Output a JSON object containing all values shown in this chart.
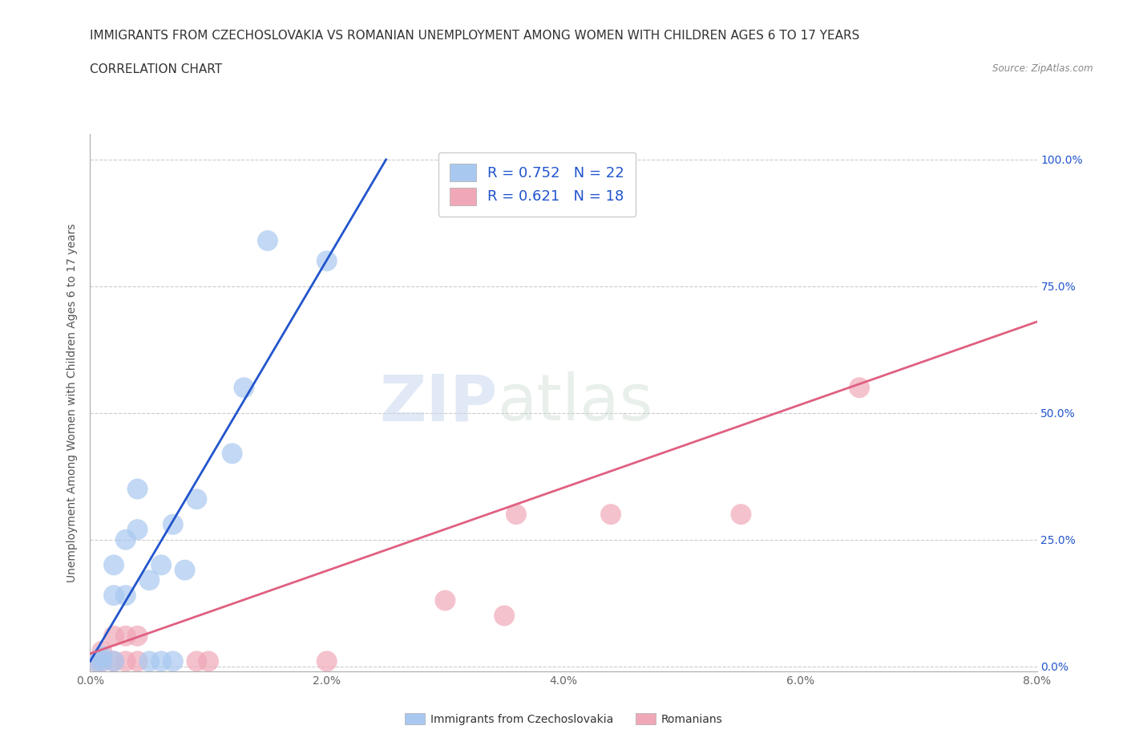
{
  "title_line1": "IMMIGRANTS FROM CZECHOSLOVAKIA VS ROMANIAN UNEMPLOYMENT AMONG WOMEN WITH CHILDREN AGES 6 TO 17 YEARS",
  "title_line2": "CORRELATION CHART",
  "source_text": "Source: ZipAtlas.com",
  "ylabel": "Unemployment Among Women with Children Ages 6 to 17 years",
  "xlim": [
    0.0,
    0.08
  ],
  "ylim": [
    -0.01,
    1.05
  ],
  "xticks": [
    0.0,
    0.02,
    0.04,
    0.06,
    0.08
  ],
  "xticklabels": [
    "0.0%",
    "2.0%",
    "4.0%",
    "6.0%",
    "8.0%"
  ],
  "yticks": [
    0.0,
    0.25,
    0.5,
    0.75,
    1.0
  ],
  "yticklabels": [
    "0.0%",
    "25.0%",
    "50.0%",
    "75.0%",
    "100.0%"
  ],
  "blue_color": "#a8c8f0",
  "pink_color": "#f0a8b8",
  "blue_line_color": "#2255cc",
  "pink_line_color": "#e06080",
  "watermark_zip": "ZIP",
  "watermark_atlas": "atlas",
  "R_blue": 0.752,
  "N_blue": 22,
  "R_pink": 0.621,
  "N_pink": 18,
  "blue_scatter_x": [
    0.0005,
    0.001,
    0.001,
    0.002,
    0.002,
    0.002,
    0.003,
    0.003,
    0.004,
    0.004,
    0.005,
    0.005,
    0.006,
    0.006,
    0.007,
    0.007,
    0.008,
    0.009,
    0.012,
    0.013,
    0.015,
    0.02
  ],
  "blue_scatter_y": [
    0.01,
    0.01,
    0.02,
    0.01,
    0.14,
    0.2,
    0.14,
    0.25,
    0.27,
    0.35,
    0.01,
    0.17,
    0.01,
    0.2,
    0.01,
    0.28,
    0.19,
    0.33,
    0.42,
    0.55,
    0.84,
    0.8
  ],
  "pink_scatter_x": [
    0.0005,
    0.001,
    0.001,
    0.002,
    0.002,
    0.003,
    0.003,
    0.004,
    0.004,
    0.009,
    0.01,
    0.02,
    0.03,
    0.035,
    0.036,
    0.044,
    0.055,
    0.065
  ],
  "pink_scatter_y": [
    0.01,
    0.01,
    0.03,
    0.01,
    0.06,
    0.01,
    0.06,
    0.01,
    0.06,
    0.01,
    0.01,
    0.01,
    0.13,
    0.1,
    0.3,
    0.3,
    0.3,
    0.55
  ],
  "blue_trend_x": [
    0.0,
    0.025
  ],
  "blue_trend_y": [
    0.01,
    1.0
  ],
  "pink_trend_x": [
    0.0,
    0.08
  ],
  "pink_trend_y": [
    0.025,
    0.68
  ],
  "background_color": "#ffffff",
  "grid_color": "#cccccc",
  "title_fontsize": 11,
  "axis_label_fontsize": 10,
  "tick_fontsize": 10,
  "scatter_size": 350
}
